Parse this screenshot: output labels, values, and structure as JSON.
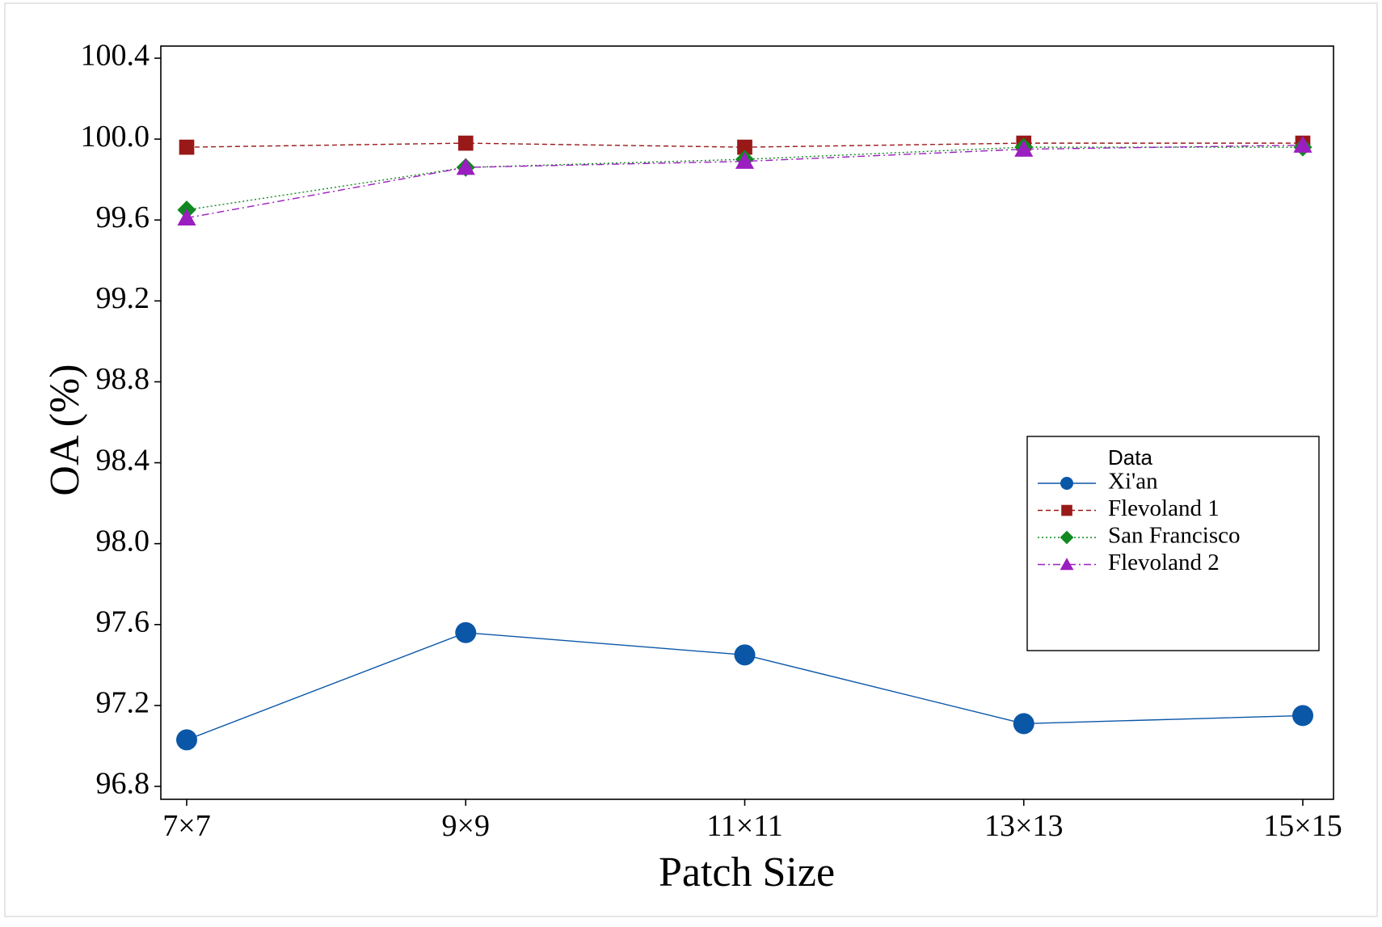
{
  "chart_data": {
    "type": "line",
    "xlabel": "Patch Size",
    "ylabel": "OA (%)",
    "categories": [
      "7×7",
      "9×9",
      "11×11",
      "13×13",
      "15×15"
    ],
    "ylim": [
      96.8,
      100.4
    ],
    "yticks": [
      "96.8",
      "97.2",
      "97.6",
      "98.0",
      "98.4",
      "98.8",
      "99.2",
      "99.6",
      "100.0",
      "100.4"
    ],
    "grid": false,
    "legend": {
      "title": "Data",
      "placement": "right"
    },
    "series": [
      {
        "name": "Xi'an",
        "values": [
          97.03,
          97.56,
          97.45,
          97.11,
          97.15
        ],
        "color": "#0a57a8",
        "marker": "circle",
        "dash": "solid"
      },
      {
        "name": "Flevoland 1",
        "values": [
          99.96,
          99.98,
          99.96,
          99.98,
          99.98
        ],
        "color": "#991919",
        "marker": "square",
        "dash": "dashed"
      },
      {
        "name": "San Francisco",
        "values": [
          99.65,
          99.86,
          99.9,
          99.96,
          99.96
        ],
        "color": "#108a20",
        "marker": "diamond",
        "dash": "dotted"
      },
      {
        "name": "Flevoland 2",
        "values": [
          99.61,
          99.86,
          99.89,
          99.95,
          99.97
        ],
        "color": "#9b1ec0",
        "marker": "triangle",
        "dash": "dashdot"
      }
    ]
  }
}
